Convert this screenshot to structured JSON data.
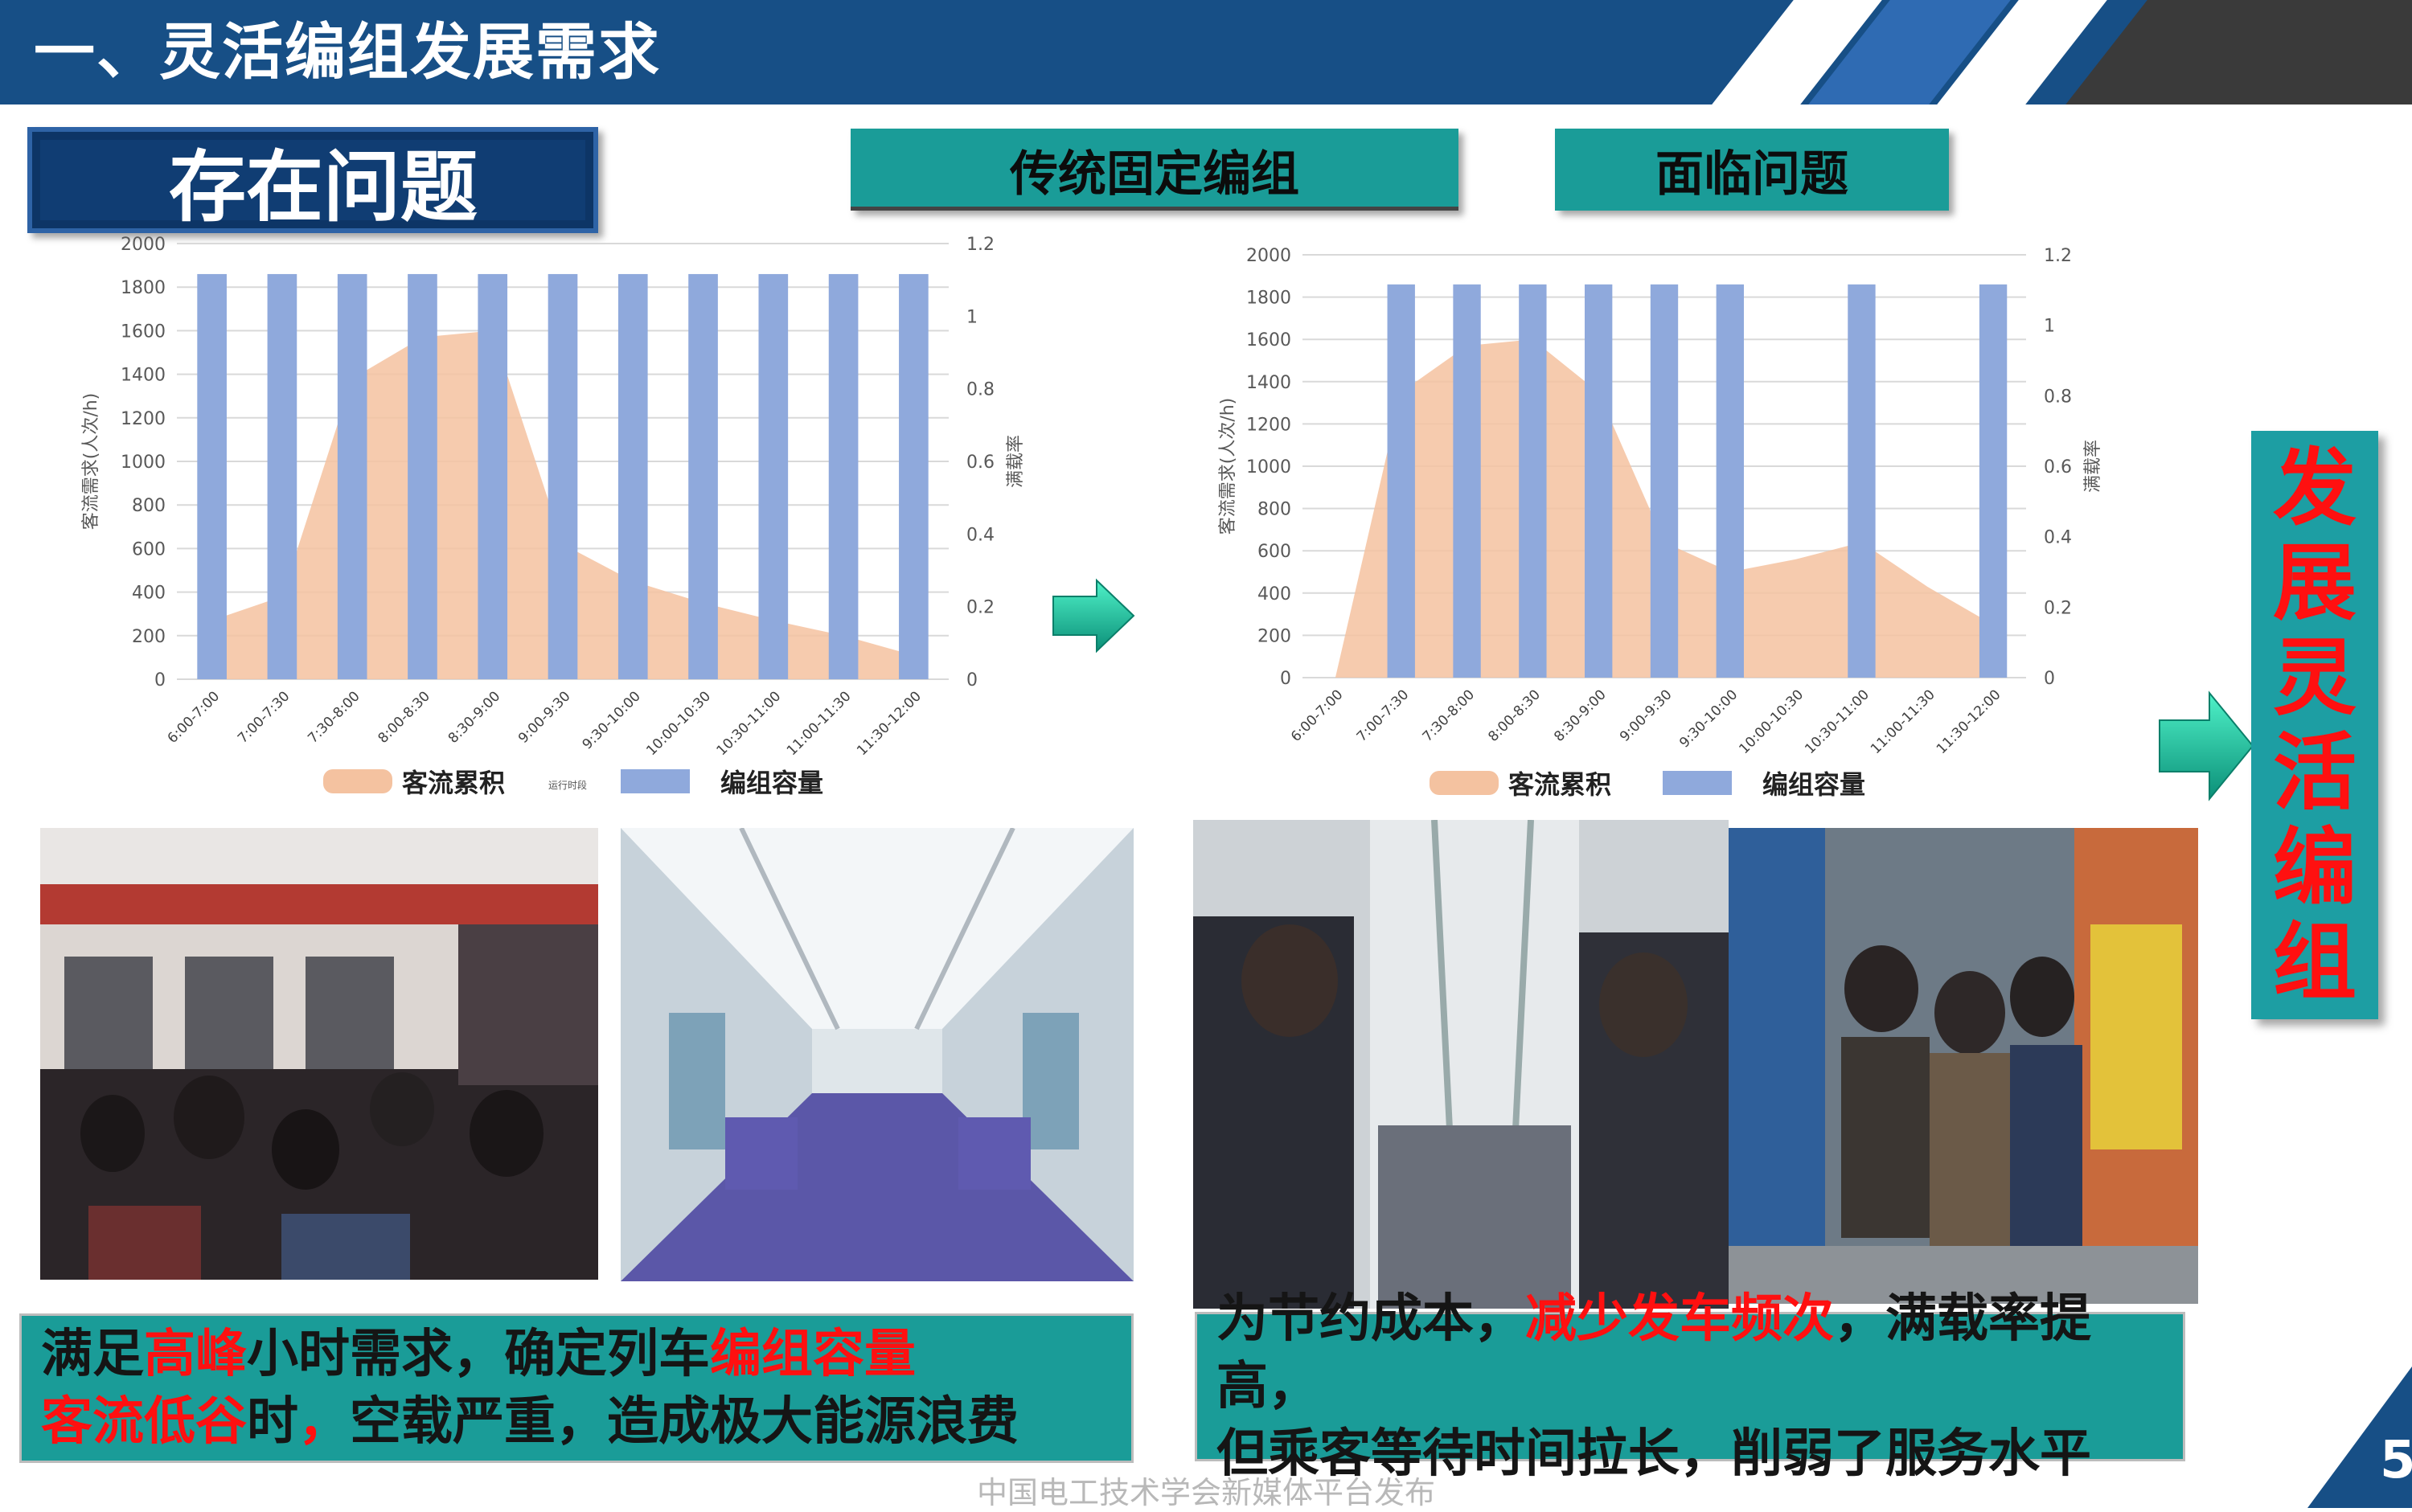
{
  "header": {
    "title": "一、灵活编组发展需求"
  },
  "tags": {
    "problem": "存在问题",
    "traditional": "传统固定编组",
    "facing": "面临问题"
  },
  "side_label": [
    "发",
    "展",
    "灵",
    "活",
    "编",
    "组"
  ],
  "footer": {
    "text": "中国电工技术学会新媒体平台发布"
  },
  "page_number": "5",
  "captions": {
    "left": [
      [
        {
          "t": "满足",
          "hl": false
        },
        {
          "t": "高峰",
          "hl": true
        },
        {
          "t": "小时需求，确定列车",
          "hl": false
        },
        {
          "t": "编组容量",
          "hl": true
        }
      ],
      [
        {
          "t": "客流低谷",
          "hl": true
        },
        {
          "t": "时",
          "hl": false
        },
        {
          "t": "，",
          "hl": true
        },
        {
          "t": "空载严重，造成极大能源浪费",
          "hl": false
        }
      ]
    ],
    "right": [
      [
        {
          "t": "为节约成本，",
          "hl": false
        },
        {
          "t": "减少发车频次",
          "hl": true
        },
        {
          "t": "，满载率提高，",
          "hl": false
        }
      ],
      [
        {
          "t": "但乘客等待时间拉长，削弱了服务水平",
          "hl": false
        }
      ]
    ]
  },
  "colors": {
    "header": "#174f86",
    "teal": "#1a9c98",
    "bar": "#8fa9dc",
    "area": "#f4c2a0",
    "highlight": "#ff1010"
  },
  "chart_data": [
    {
      "type": "bar",
      "categories": [
        "6:00-7:00",
        "7:00-7:30",
        "7:30-8:00",
        "8:00-8:30",
        "8:30-9:00",
        "9:00-9:30",
        "9:30-10:00",
        "10:00-10:30",
        "10:30-11:00",
        "11:00-11:30",
        "11:30-12:00"
      ],
      "ylabel": "客流需求(人次/h)",
      "y2label": "满载率",
      "ylim": [
        0,
        2000
      ],
      "y2lim": [
        0,
        1.2
      ],
      "yticks": [
        "0",
        "200",
        "400",
        "600",
        "800",
        "1000",
        "1200",
        "1400",
        "1600",
        "1800",
        "2000"
      ],
      "y2ticks": [
        "0",
        "0.2",
        "0.4",
        "0.6",
        "0.8",
        "1",
        "1.2"
      ],
      "grid": true,
      "legend_position": "bottom",
      "legend_note": "运行时段",
      "series": [
        {
          "name": "客流累积",
          "kind": "area",
          "values": [
            270,
            380,
            1380,
            1570,
            1600,
            620,
            450,
            350,
            270,
            200,
            110
          ]
        },
        {
          "name": "编组容量",
          "kind": "bar",
          "values": [
            1860,
            1860,
            1860,
            1860,
            1860,
            1860,
            1860,
            1860,
            1860,
            1860,
            1860
          ]
        }
      ]
    },
    {
      "type": "bar",
      "categories": [
        "6:00-7:00",
        "7:00-7:30",
        "7:30-8:00",
        "8:00-8:30",
        "8:30-9:00",
        "9:00-9:30",
        "9:30-10:00",
        "10:00-10:30",
        "10:30-11:00",
        "11:00-11:30",
        "11:30-12:00"
      ],
      "ylabel": "客流需求(人次/h)",
      "y2label": "满载率",
      "ylim": [
        0,
        2000
      ],
      "y2lim": [
        0,
        1.2
      ],
      "yticks": [
        "0",
        "200",
        "400",
        "600",
        "800",
        "1000",
        "1200",
        "1400",
        "1600",
        "1800",
        "2000"
      ],
      "y2ticks": [
        "0",
        "0.2",
        "0.4",
        "0.6",
        "0.8",
        "1",
        "1.2"
      ],
      "grid": true,
      "legend_position": "bottom",
      "series": [
        {
          "name": "客流累积",
          "kind": "area",
          "values": [
            0,
            1350,
            1570,
            1600,
            1350,
            640,
            500,
            560,
            640,
            430,
            250
          ]
        },
        {
          "name": "编组容量",
          "kind": "bar",
          "values": [
            null,
            1860,
            1860,
            1860,
            1860,
            1860,
            1860,
            null,
            1860,
            null,
            1860
          ]
        }
      ]
    }
  ]
}
